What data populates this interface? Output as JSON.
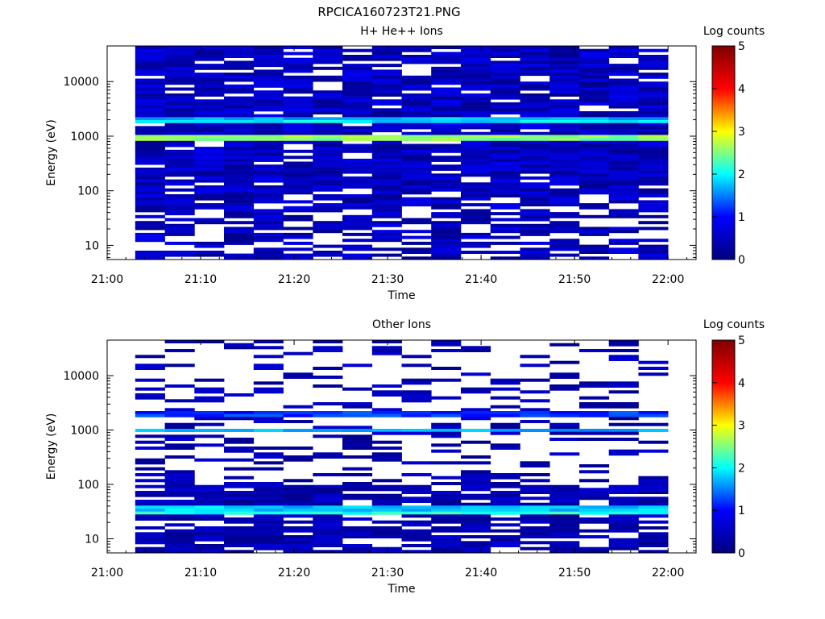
{
  "figure_title": "RPCICA160723T21.PNG",
  "colors": {
    "colormap": [
      "#000080",
      "#0000ff",
      "#00ffff",
      "#ffff00",
      "#ff0000",
      "#800000"
    ],
    "background": "#ffffff",
    "axis": "#000000"
  },
  "chart_data": [
    {
      "type": "heatmap",
      "title": "H+ He++ Ions",
      "xlabel": "Time",
      "ylabel": "Energy (eV)",
      "x_ticks": [
        "21:00",
        "21:10",
        "21:20",
        "21:30",
        "21:40",
        "21:50",
        "22:00"
      ],
      "xlim": [
        "21:00",
        "22:03"
      ],
      "y_scale": "log",
      "y_ticks": [
        "10",
        "100",
        "1000",
        "10000"
      ],
      "ylim": [
        5.5,
        45000
      ],
      "colorbar": {
        "label": "Log counts",
        "range": [
          0,
          5
        ],
        "ticks": [
          "0",
          "1",
          "2",
          "3",
          "4",
          "5"
        ]
      },
      "data_start": "21:03",
      "data_end": "22:00",
      "time_bins": 18,
      "bands": [
        {
          "energy_eV": 900,
          "log_counts": 2.5
        },
        {
          "energy_eV": 1000,
          "log_counts": 2.6
        },
        {
          "energy_eV": 1900,
          "log_counts": 1.9
        },
        {
          "energy_eV": 2050,
          "log_counts": 1.7
        }
      ],
      "background_log_counts": [
        0.1,
        0.9
      ],
      "high_energy_low_counts_above_eV": 100
    },
    {
      "type": "heatmap",
      "title": "Other Ions",
      "xlabel": "Time",
      "ylabel": "Energy (eV)",
      "x_ticks": [
        "21:00",
        "21:10",
        "21:20",
        "21:30",
        "21:40",
        "21:50",
        "22:00"
      ],
      "xlim": [
        "21:00",
        "22:03"
      ],
      "y_scale": "log",
      "y_ticks": [
        "10",
        "100",
        "1000",
        "10000"
      ],
      "ylim": [
        5.5,
        45000
      ],
      "colorbar": {
        "label": "Log counts",
        "range": [
          0,
          5
        ],
        "ticks": [
          "0",
          "1",
          "2",
          "3",
          "4",
          "5"
        ]
      },
      "data_start": "21:03",
      "data_end": "22:00",
      "time_bins": 18,
      "bands": [
        {
          "energy_eV": 30,
          "log_counts": 2.1
        },
        {
          "energy_eV": 36,
          "log_counts": 1.8
        },
        {
          "energy_eV": 950,
          "log_counts": 1.7
        },
        {
          "energy_eV": 2000,
          "log_counts": 1.2
        }
      ],
      "background_log_counts": [
        0.1,
        0.7
      ],
      "high_energy_low_counts_above_eV": 100
    }
  ]
}
